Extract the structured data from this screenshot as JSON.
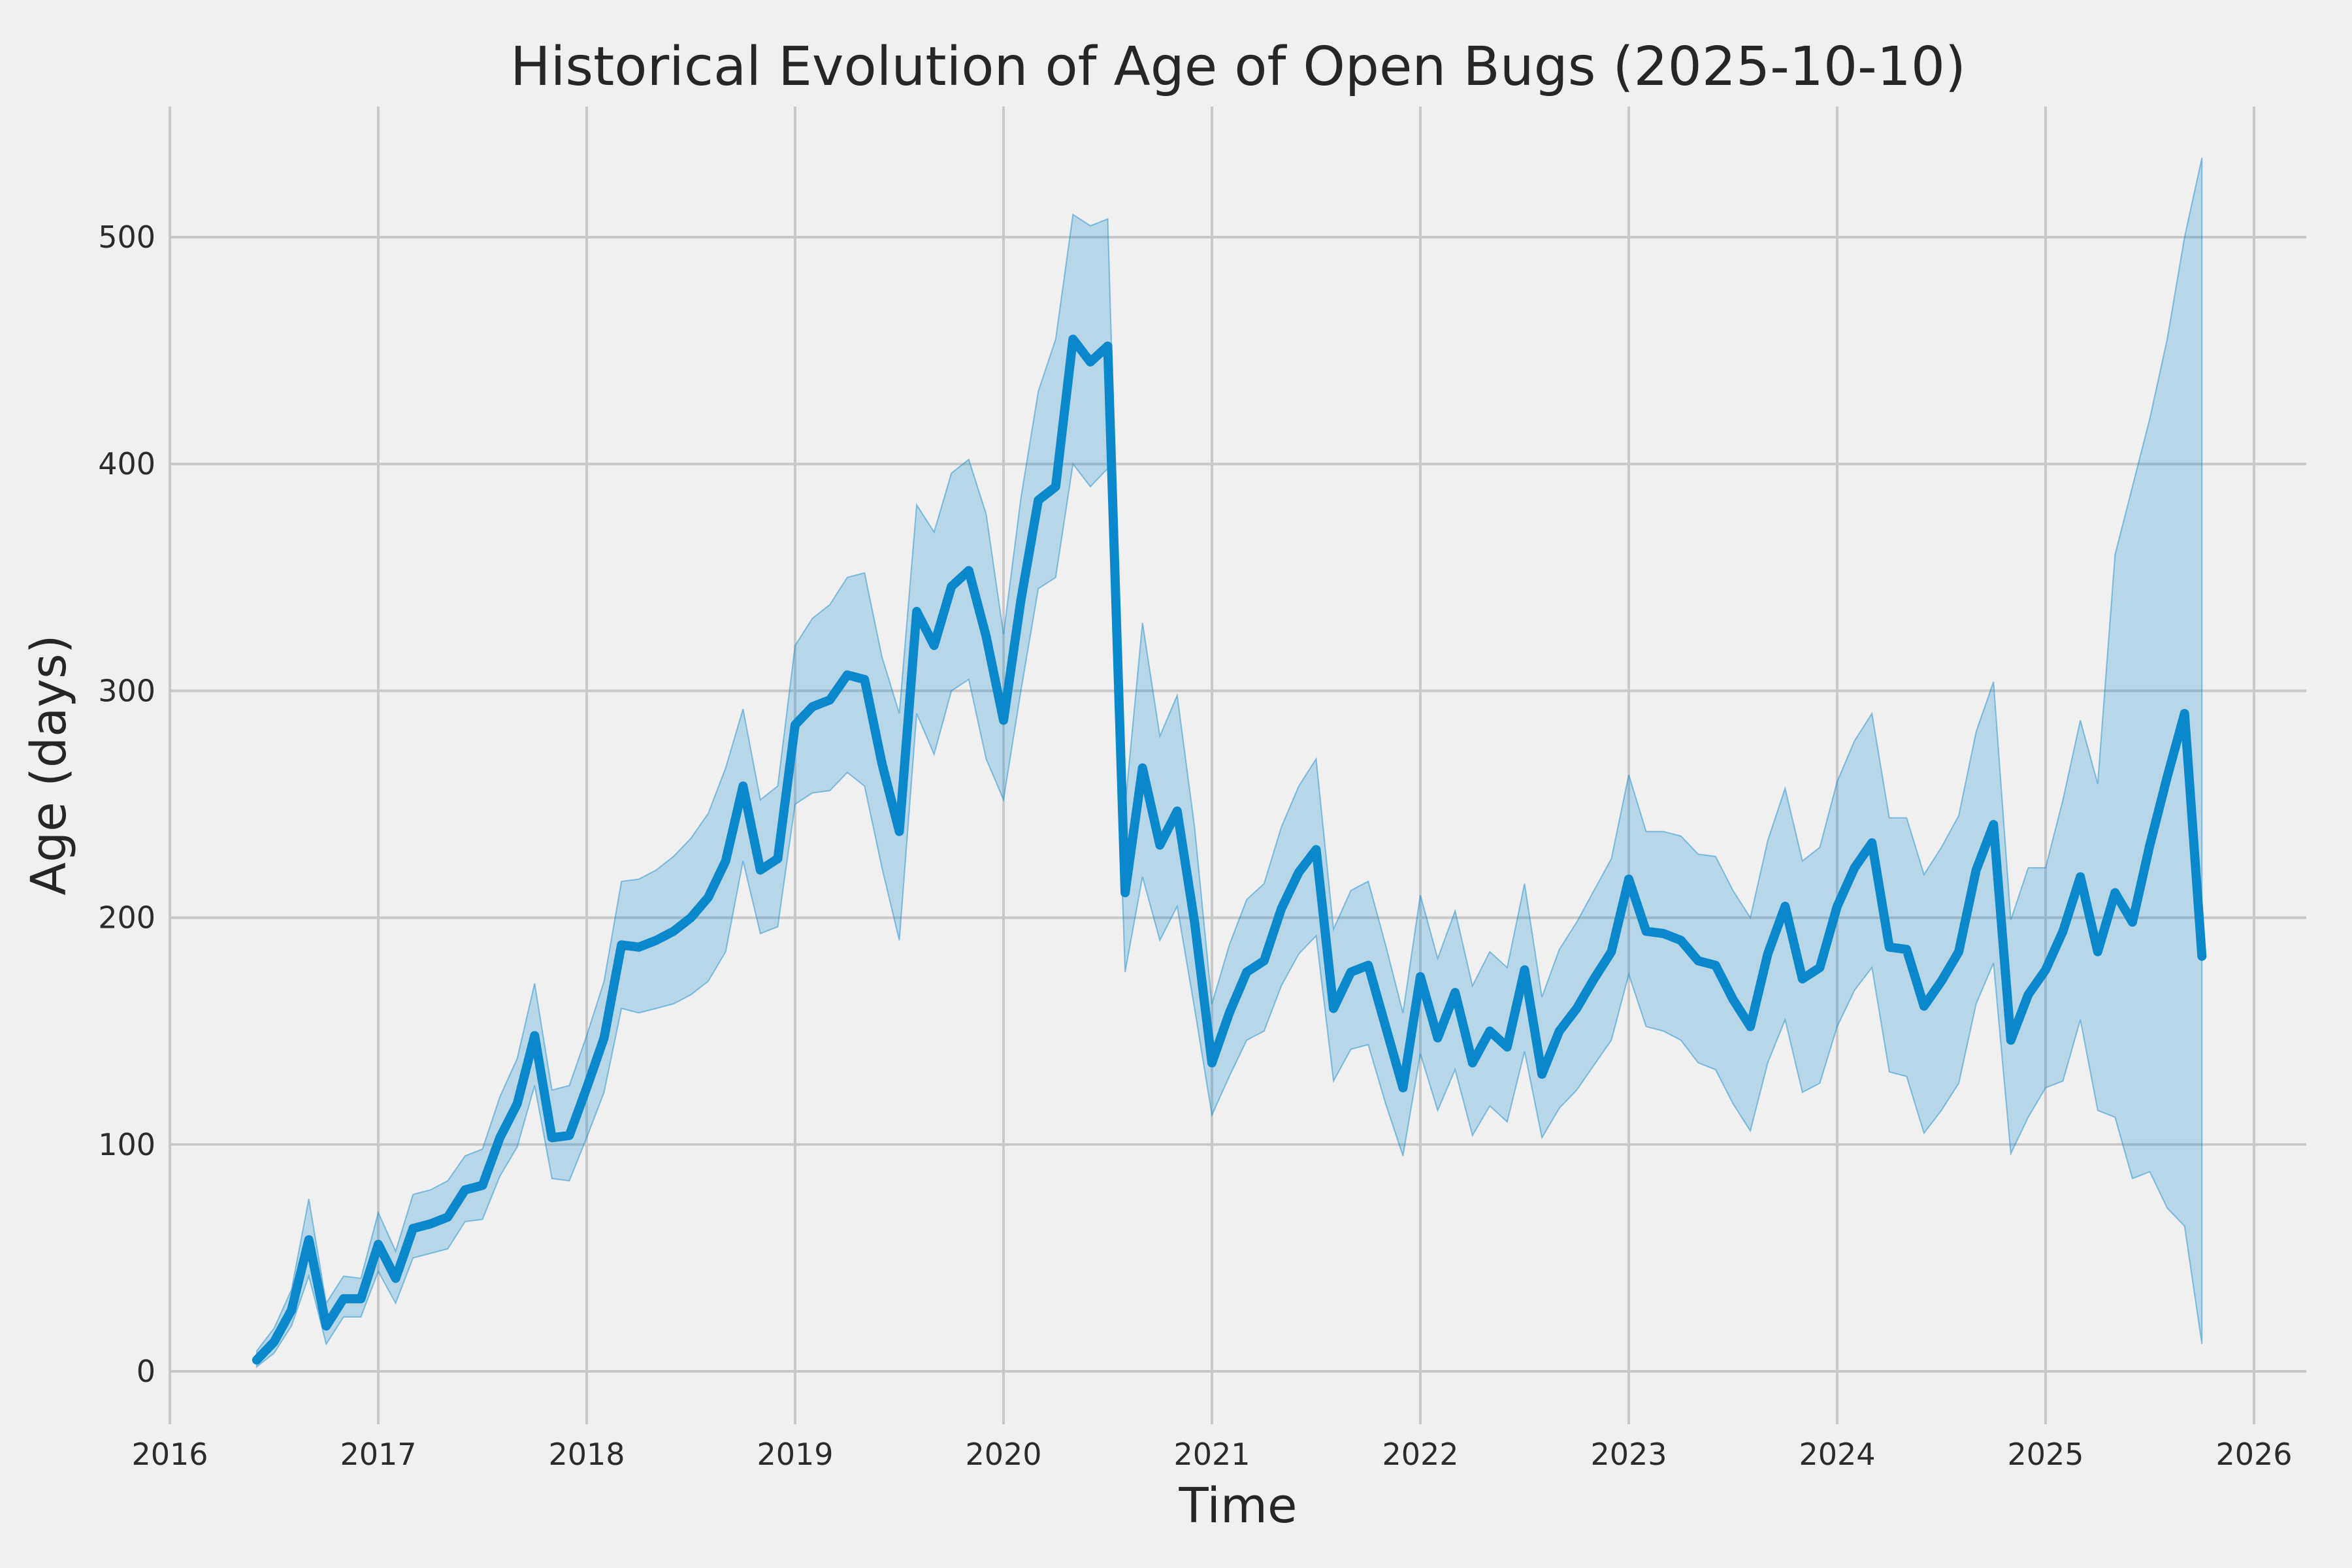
{
  "title": "Historical Evolution of Age of Open Bugs (2025-10-10)",
  "x_axis": {
    "label": "Time",
    "ticks": [
      "2016",
      "2017",
      "2018",
      "2019",
      "2020",
      "2021",
      "2022",
      "2023",
      "2024",
      "2025",
      "2026"
    ]
  },
  "y_axis": {
    "label": "Age (days)",
    "ticks": [
      "0",
      "100",
      "200",
      "300",
      "400",
      "500"
    ]
  },
  "colors": {
    "background": "#f0f0f0",
    "gridline": "#c9c9c9",
    "line": "#0b87cc",
    "band_fill": "rgba(11,135,204,0.25)",
    "band_edge": "rgba(11,135,204,0.45)",
    "text": "#262626"
  },
  "chart_data": {
    "type": "line",
    "title": "Historical Evolution of Age of Open Bugs (2025-10-10)",
    "xlabel": "Time",
    "ylabel": "Age (days)",
    "legend": "none",
    "grid": true,
    "x_tick_years": [
      2016,
      2017,
      2018,
      2019,
      2020,
      2021,
      2022,
      2023,
      2024,
      2025,
      2026
    ],
    "y_ticks": [
      0,
      100,
      200,
      300,
      400,
      500
    ],
    "xlim": [
      2016.0,
      2026.25
    ],
    "ylim": [
      -25,
      560
    ],
    "months": [
      "2016-06",
      "2016-07",
      "2016-08",
      "2016-09",
      "2016-10",
      "2016-11",
      "2016-12",
      "2017-01",
      "2017-02",
      "2017-03",
      "2017-04",
      "2017-05",
      "2017-06",
      "2017-07",
      "2017-08",
      "2017-09",
      "2017-10",
      "2017-11",
      "2017-12",
      "2018-01",
      "2018-02",
      "2018-03",
      "2018-04",
      "2018-05",
      "2018-06",
      "2018-07",
      "2018-08",
      "2018-09",
      "2018-10",
      "2018-11",
      "2018-12",
      "2019-01",
      "2019-02",
      "2019-03",
      "2019-04",
      "2019-05",
      "2019-06",
      "2019-07",
      "2019-08",
      "2019-09",
      "2019-10",
      "2019-11",
      "2019-12",
      "2020-01",
      "2020-02",
      "2020-03",
      "2020-04",
      "2020-05",
      "2020-06",
      "2020-07",
      "2020-08",
      "2020-09",
      "2020-10",
      "2020-11",
      "2020-12",
      "2021-01",
      "2021-02",
      "2021-03",
      "2021-04",
      "2021-05",
      "2021-06",
      "2021-07",
      "2021-08",
      "2021-09",
      "2021-10",
      "2021-11",
      "2021-12",
      "2022-01",
      "2022-02",
      "2022-03",
      "2022-04",
      "2022-05",
      "2022-06",
      "2022-07",
      "2022-08",
      "2022-09",
      "2022-10",
      "2022-11",
      "2022-12",
      "2023-01",
      "2023-02",
      "2023-03",
      "2023-04",
      "2023-05",
      "2023-06",
      "2023-07",
      "2023-08",
      "2023-09",
      "2023-10",
      "2023-11",
      "2023-12",
      "2024-01",
      "2024-02",
      "2024-03",
      "2024-04",
      "2024-05",
      "2024-06",
      "2024-07",
      "2024-08",
      "2024-09",
      "2024-10",
      "2024-11",
      "2024-12",
      "2025-01",
      "2025-02",
      "2025-03",
      "2025-04",
      "2025-05",
      "2025-06",
      "2025-07",
      "2025-08",
      "2025-09",
      "2025-10"
    ],
    "series": [
      {
        "name": "mean",
        "values": [
          5,
          13,
          27,
          58,
          20,
          32,
          32,
          56,
          41,
          63,
          65,
          68,
          80,
          82,
          103,
          118,
          148,
          103,
          104,
          125,
          147,
          188,
          187,
          190,
          194,
          200,
          209,
          225,
          258,
          221,
          226,
          285,
          293,
          296,
          307,
          305,
          268,
          238,
          335,
          320,
          346,
          353,
          324,
          287,
          340,
          384,
          390,
          455,
          445,
          452,
          211,
          266,
          232,
          247,
          198,
          136,
          158,
          176,
          181,
          204,
          220,
          230,
          160,
          176,
          179,
          152,
          125,
          174,
          147,
          167,
          136,
          150,
          143,
          177,
          131,
          150,
          160,
          173,
          185,
          217,
          194,
          193,
          190,
          181,
          179,
          164,
          152,
          184,
          205,
          173,
          178,
          205,
          222,
          233,
          187,
          186,
          161,
          172,
          185,
          221,
          241,
          146,
          166,
          177,
          194,
          218,
          185,
          211,
          198,
          232,
          262,
          290,
          183
        ]
      },
      {
        "name": "band_lower",
        "values": [
          2,
          8,
          20,
          42,
          12,
          24,
          24,
          44,
          30,
          50,
          52,
          54,
          66,
          67,
          86,
          99,
          126,
          85,
          84,
          103,
          123,
          160,
          158,
          160,
          162,
          166,
          172,
          185,
          225,
          193,
          196,
          250,
          255,
          256,
          264,
          258,
          222,
          190,
          290,
          272,
          300,
          305,
          270,
          252,
          300,
          345,
          350,
          400,
          390,
          398,
          176,
          218,
          190,
          205,
          160,
          113,
          130,
          146,
          150,
          170,
          184,
          192,
          128,
          142,
          144,
          118,
          95,
          140,
          115,
          133,
          104,
          117,
          110,
          141,
          103,
          116,
          124,
          135,
          146,
          175,
          152,
          150,
          146,
          136,
          133,
          118,
          106,
          136,
          155,
          123,
          127,
          152,
          168,
          178,
          132,
          130,
          105,
          115,
          127,
          162,
          180,
          96,
          112,
          125,
          128,
          155,
          115,
          112,
          85,
          88,
          72,
          64,
          12
        ]
      },
      {
        "name": "band_upper",
        "values": [
          9,
          19,
          36,
          76,
          30,
          42,
          41,
          70,
          53,
          78,
          80,
          84,
          95,
          98,
          121,
          138,
          171,
          124,
          126,
          148,
          172,
          216,
          217,
          221,
          227,
          235,
          246,
          266,
          292,
          252,
          258,
          320,
          332,
          338,
          350,
          352,
          315,
          290,
          382,
          370,
          396,
          402,
          378,
          325,
          385,
          432,
          455,
          510,
          505,
          508,
          249,
          330,
          280,
          298,
          240,
          162,
          188,
          208,
          215,
          240,
          258,
          270,
          195,
          212,
          216,
          188,
          158,
          210,
          182,
          203,
          170,
          185,
          178,
          215,
          165,
          186,
          198,
          212,
          226,
          263,
          238,
          238,
          236,
          228,
          227,
          212,
          200,
          234,
          257,
          225,
          231,
          260,
          278,
          290,
          244,
          244,
          219,
          231,
          245,
          282,
          304,
          199,
          222,
          222,
          252,
          287,
          259,
          360,
          390,
          420,
          455,
          500,
          535
        ]
      }
    ]
  }
}
